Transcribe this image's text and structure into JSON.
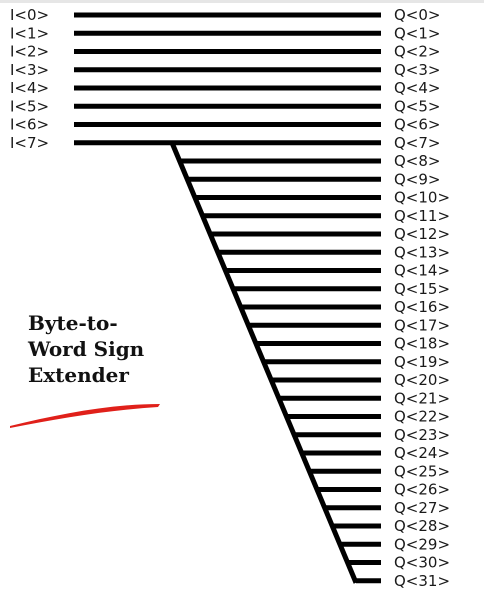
{
  "inputs": [
    "I<0>",
    "I<1>",
    "I<2>",
    "I<3>",
    "I<4>",
    "I<5>",
    "I<6>",
    "I<7>"
  ],
  "outputs": [
    "Q<0>",
    "Q<1>",
    "Q<2>",
    "Q<3>",
    "Q<4>",
    "Q<5>",
    "Q<6>",
    "Q<7>",
    "Q<8>",
    "Q<9>",
    "Q<10>",
    "Q<11>",
    "Q<12>",
    "Q<13>",
    "Q<14>",
    "Q<15>",
    "Q<16>",
    "Q<17>",
    "Q<18>",
    "Q<19>",
    "Q<20>",
    "Q<21>",
    "Q<22>",
    "Q<23>",
    "Q<24>",
    "Q<25>",
    "Q<26>",
    "Q<27>",
    "Q<28>",
    "Q<29>",
    "Q<30>",
    "Q<31>"
  ],
  "title_lines": [
    "Byte-to-",
    "Word Sign",
    "Extender"
  ],
  "colors": {
    "wire": "#000000",
    "underline": "#e0201a",
    "text": "#1a1a1a"
  }
}
